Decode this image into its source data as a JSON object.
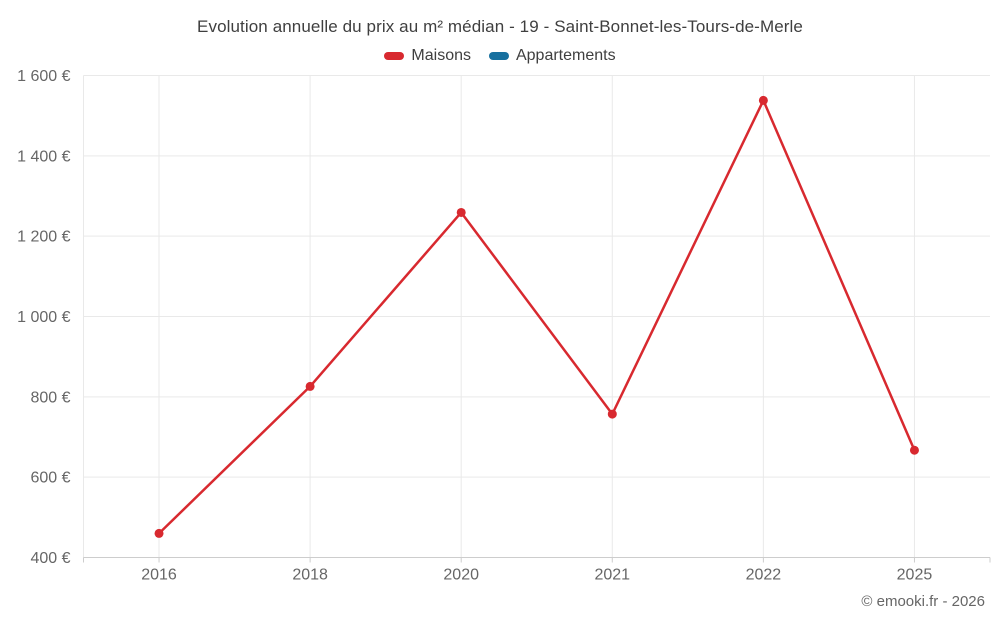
{
  "watermark": "© emooki.fr - 2026",
  "colors": {
    "title_text": "#3f3f3f",
    "axis_text": "#666666",
    "gridline": "#e9e9e9",
    "axis_line": "#cdcdcd",
    "maisons_red": "#d8292f",
    "appartements_blue": "#17709f"
  },
  "chart_data": {
    "type": "line",
    "title": "Evolution annuelle du prix au m² médian - 19 - Saint-Bonnet-les-Tours-de-Merle",
    "categories": [
      "2016",
      "2018",
      "2020",
      "2021",
      "2022",
      "2025"
    ],
    "series": [
      {
        "name": "Maisons",
        "color": "#d8292f",
        "values": [
          460,
          826,
          1259,
          757,
          1538,
          667
        ]
      },
      {
        "name": "Appartements",
        "color": "#17709f",
        "values": []
      }
    ],
    "xlabel": "",
    "ylabel": "",
    "ylim": [
      400,
      1600
    ],
    "yticks": [
      400,
      600,
      800,
      1000,
      1200,
      1400,
      1600
    ],
    "ytick_labels": [
      "400 €",
      "600 €",
      "800 €",
      "1 000 €",
      "1 200 €",
      "1 400 €",
      "1 600 €"
    ],
    "grid": true,
    "legend_position": "top",
    "marker_radius": 4.5,
    "line_width": 2.5
  }
}
